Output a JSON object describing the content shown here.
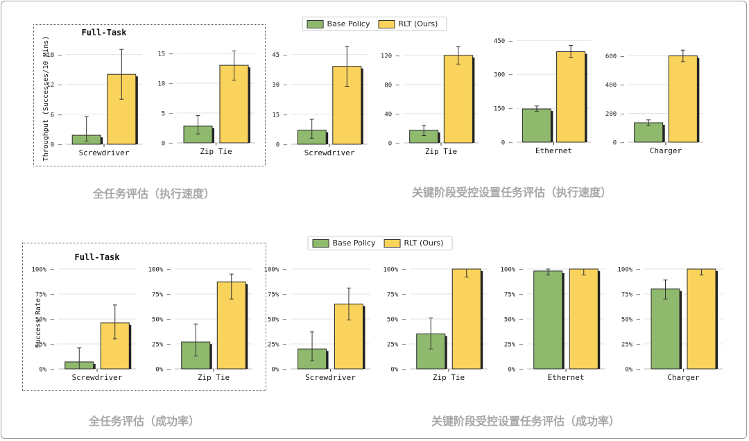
{
  "legend": {
    "base_label": "Base Policy",
    "rlt_label": "RLT (Ours)"
  },
  "colors": {
    "base": "#8fb96d",
    "rlt": "#f9d35c",
    "caption": "#a7a7a7"
  },
  "captions": {
    "top_left": "全任务评估（执行速度）",
    "top_right": "关键阶段受控设置任务评估（执行速度）",
    "bottom_left": "全任务评估（成功率）",
    "bottom_right": "关键阶段受控设置任务评估（成功率）"
  },
  "chart_data": [
    {
      "type": "bar",
      "panel_title": "Full-Task",
      "ylabel": "Throughput (Successes/10 Mins)",
      "category": "Screwdriver",
      "ylim": [
        0,
        20
      ],
      "yticks": [
        0,
        6,
        12,
        18
      ],
      "series": [
        {
          "name": "Base Policy",
          "value": 1.8,
          "err": [
            0.6,
            5.5
          ]
        },
        {
          "name": "RLT (Ours)",
          "value": 14,
          "err": [
            9,
            19
          ]
        }
      ]
    },
    {
      "type": "bar",
      "category": "Zip Tie",
      "ylim": [
        0,
        16.5
      ],
      "yticks": [
        0,
        5,
        10,
        15
      ],
      "series": [
        {
          "name": "Base Policy",
          "value": 2.8,
          "err": [
            1.5,
            4.6
          ]
        },
        {
          "name": "RLT (Ours)",
          "value": 13,
          "err": [
            10.5,
            15.4
          ]
        }
      ]
    },
    {
      "type": "bar",
      "category": "Screwdriver",
      "ylim": [
        0,
        50
      ],
      "yticks": [
        0,
        15,
        30,
        45
      ],
      "series": [
        {
          "name": "Base Policy",
          "value": 7,
          "err": [
            3,
            12.5
          ]
        },
        {
          "name": "RLT (Ours)",
          "value": 39,
          "err": [
            29,
            49
          ]
        }
      ]
    },
    {
      "type": "bar",
      "category": "Zip Tie",
      "ylim": [
        0,
        135
      ],
      "yticks": [
        0,
        40,
        80,
        120
      ],
      "series": [
        {
          "name": "Base Policy",
          "value": 17,
          "err": [
            10,
            24
          ]
        },
        {
          "name": "RLT (Ours)",
          "value": 120,
          "err": [
            108,
            132
          ]
        }
      ]
    },
    {
      "type": "bar",
      "category": "Ethernet",
      "ylim": [
        0,
        460
      ],
      "yticks": [
        0,
        150,
        300,
        450
      ],
      "series": [
        {
          "name": "Base Policy",
          "value": 147,
          "err": [
            137,
            160
          ]
        },
        {
          "name": "RLT (Ours)",
          "value": 400,
          "err": [
            375,
            428
          ]
        }
      ]
    },
    {
      "type": "bar",
      "category": "Charger",
      "ylim": [
        0,
        680
      ],
      "yticks": [
        0,
        200,
        400,
        600
      ],
      "series": [
        {
          "name": "Base Policy",
          "value": 135,
          "err": [
            115,
            155
          ]
        },
        {
          "name": "RLT (Ours)",
          "value": 600,
          "err": [
            560,
            640
          ]
        }
      ]
    },
    {
      "type": "bar",
      "panel_title": "Full-Task",
      "ylabel": "Success Rate",
      "category": "Screwdriver",
      "ylim": [
        0,
        100
      ],
      "yticks": [
        0,
        25,
        50,
        75,
        100
      ],
      "unit": "%",
      "series": [
        {
          "name": "Base Policy",
          "value": 7,
          "err": [
            0,
            21
          ]
        },
        {
          "name": "RLT (Ours)",
          "value": 46,
          "err": [
            30,
            64
          ]
        }
      ]
    },
    {
      "type": "bar",
      "category": "Zip Tie",
      "ylim": [
        0,
        100
      ],
      "yticks": [
        0,
        25,
        50,
        75,
        100
      ],
      "unit": "%",
      "series": [
        {
          "name": "Base Policy",
          "value": 27,
          "err": [
            13,
            45
          ]
        },
        {
          "name": "RLT (Ours)",
          "value": 87,
          "err": [
            70,
            95
          ]
        }
      ]
    },
    {
      "type": "bar",
      "category": "Screwdriver",
      "ylim": [
        0,
        100
      ],
      "yticks": [
        0,
        25,
        50,
        75,
        100
      ],
      "unit": "%",
      "series": [
        {
          "name": "Base Policy",
          "value": 20,
          "err": [
            8,
            37
          ]
        },
        {
          "name": "RLT (Ours)",
          "value": 65,
          "err": [
            49,
            81
          ]
        }
      ]
    },
    {
      "type": "bar",
      "category": "Zip Tie",
      "ylim": [
        0,
        100
      ],
      "yticks": [
        0,
        25,
        50,
        75,
        100
      ],
      "unit": "%",
      "series": [
        {
          "name": "Base Policy",
          "value": 35,
          "err": [
            20,
            51
          ]
        },
        {
          "name": "RLT (Ours)",
          "value": 100,
          "err": [
            92,
            100
          ]
        }
      ]
    },
    {
      "type": "bar",
      "category": "Ethernet",
      "ylim": [
        0,
        100
      ],
      "yticks": [
        0,
        25,
        50,
        75,
        100
      ],
      "unit": "%",
      "series": [
        {
          "name": "Base Policy",
          "value": 98,
          "err": [
            94,
            100
          ]
        },
        {
          "name": "RLT (Ours)",
          "value": 100,
          "err": [
            94,
            100
          ]
        }
      ]
    },
    {
      "type": "bar",
      "category": "Charger",
      "ylim": [
        0,
        100
      ],
      "yticks": [
        0,
        25,
        50,
        75,
        100
      ],
      "unit": "%",
      "series": [
        {
          "name": "Base Policy",
          "value": 80,
          "err": [
            70,
            89
          ]
        },
        {
          "name": "RLT (Ours)",
          "value": 100,
          "err": [
            94,
            100
          ]
        }
      ]
    }
  ]
}
